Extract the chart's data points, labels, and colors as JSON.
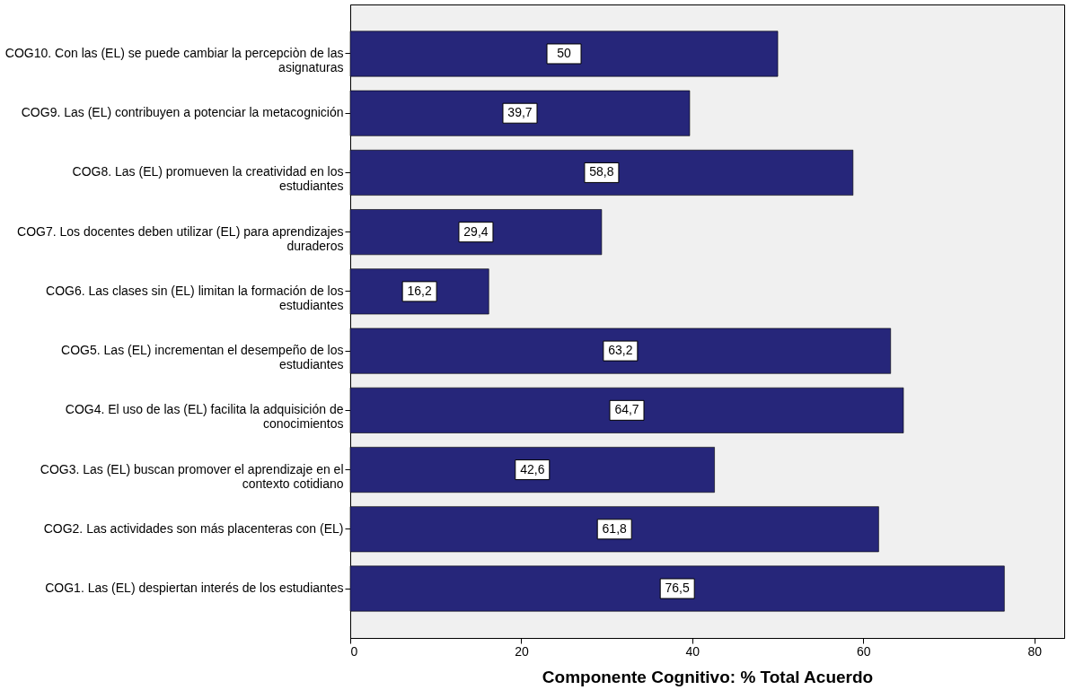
{
  "chart_data": {
    "type": "bar",
    "orientation": "horizontal",
    "xlabel": "Componente Cognitivo: % Total Acuerdo",
    "categories": [
      "COG10. Con las (EL) se puede cambiar la percepciòn de las\nasignaturas",
      "COG9. Las (EL) contribuyen a potenciar la metacognición",
      "COG8. Las (EL) promueven la creatividad en los\nestudiantes",
      "COG7. Los docentes deben utilizar (EL) para aprendizajes\nduraderos",
      "COG6. Las clases sin (EL) limitan la formación de los\nestudiantes",
      "COG5. Las (EL) incrementan el desempeño de los\nestudiantes",
      "COG4. El uso de las (EL) facilita la adquisición de\nconocimientos",
      "COG3. Las (EL) buscan promover el aprendizaje en el\ncontexto cotidiano",
      "COG2. Las actividades son más placenteras con (EL)",
      "COG1. Las (EL) despiertan interés de los estudiantes"
    ],
    "values": [
      50,
      39.7,
      58.8,
      29.4,
      16.2,
      63.2,
      64.7,
      42.6,
      61.8,
      76.5
    ],
    "value_labels": [
      "50",
      "39,7",
      "58,8",
      "29,4",
      "16,2",
      "63,2",
      "64,7",
      "42,6",
      "61,8",
      "76,5"
    ],
    "color": "#26267a",
    "xlim": [
      0,
      83.5
    ],
    "xticks": [
      0,
      20,
      40,
      60,
      80
    ],
    "grid": false
  }
}
